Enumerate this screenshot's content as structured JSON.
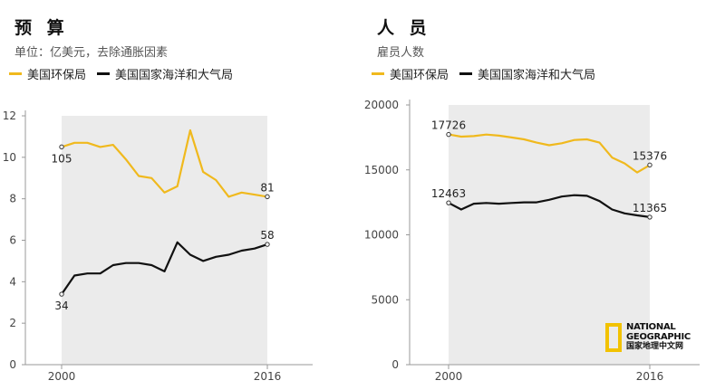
{
  "colors": {
    "epa": "#f0b91d",
    "noaa": "#111111",
    "shade": "#ebebeb",
    "axis": "#999999"
  },
  "logo": {
    "line1": "NATIONAL",
    "line2": "GEOGRAPHIC",
    "line3": "国家地理中文网"
  },
  "chart_data": [
    {
      "type": "line",
      "title": "预 算",
      "subtitle": "单位：亿美元，去除通胀因素",
      "xlabel": "",
      "ylabel": "",
      "x": [
        2000,
        2001,
        2002,
        2003,
        2004,
        2005,
        2006,
        2007,
        2008,
        2009,
        2010,
        2011,
        2012,
        2013,
        2014,
        2015,
        2016
      ],
      "xticks": [
        "2000",
        "2016"
      ],
      "ylim": [
        0,
        12
      ],
      "yticks": [
        "0",
        "2",
        "4",
        "6",
        "8",
        "10",
        "12"
      ],
      "yticks_values": [
        0,
        2,
        4,
        6,
        8,
        10,
        12
      ],
      "series": [
        {
          "name": "美国环保局",
          "color_key": "epa",
          "values": [
            10.5,
            10.7,
            10.7,
            10.5,
            10.6,
            9.9,
            9.1,
            9.0,
            8.3,
            8.6,
            11.3,
            9.3,
            8.9,
            8.1,
            8.3,
            8.2,
            8.1
          ]
        },
        {
          "name": "美国国家海洋和大气局",
          "color_key": "noaa",
          "values": [
            3.4,
            4.3,
            4.4,
            4.4,
            4.8,
            4.9,
            4.9,
            4.8,
            4.5,
            5.9,
            5.3,
            5.0,
            5.2,
            5.3,
            5.5,
            5.6,
            5.8
          ]
        }
      ],
      "annotations": [
        {
          "text": "105",
          "series": 0,
          "index": 0,
          "side": "below"
        },
        {
          "text": "81",
          "series": 0,
          "index": 16,
          "side": "above"
        },
        {
          "text": "34",
          "series": 1,
          "index": 0,
          "side": "below"
        },
        {
          "text": "58",
          "series": 1,
          "index": 16,
          "side": "above"
        }
      ]
    },
    {
      "type": "line",
      "title": "人 员",
      "subtitle": "雇员人数",
      "xlabel": "",
      "ylabel": "",
      "x": [
        2000,
        2001,
        2002,
        2003,
        2004,
        2005,
        2006,
        2007,
        2008,
        2009,
        2010,
        2011,
        2012,
        2013,
        2014,
        2015,
        2016
      ],
      "xticks": [
        "2000",
        "2016"
      ],
      "ylim": [
        0,
        20000
      ],
      "yticks": [
        "0",
        "5000",
        "10000",
        "15000",
        "20000"
      ],
      "yticks_values": [
        0,
        5000,
        10000,
        15000,
        20000
      ],
      "series": [
        {
          "name": "美国环保局",
          "color_key": "epa",
          "values": [
            17726,
            17560,
            17600,
            17720,
            17640,
            17500,
            17350,
            17100,
            16900,
            17050,
            17300,
            17350,
            17100,
            15950,
            15500,
            14800,
            15376
          ]
        },
        {
          "name": "美国国家海洋和大气局",
          "color_key": "noaa",
          "values": [
            12463,
            11950,
            12400,
            12450,
            12400,
            12450,
            12500,
            12500,
            12700,
            12950,
            13050,
            13000,
            12600,
            11950,
            11650,
            11500,
            11365
          ]
        }
      ],
      "annotations": [
        {
          "text": "17726",
          "series": 0,
          "index": 0,
          "side": "above"
        },
        {
          "text": "15376",
          "series": 0,
          "index": 16,
          "side": "above"
        },
        {
          "text": "12463",
          "series": 1,
          "index": 0,
          "side": "above"
        },
        {
          "text": "11365",
          "series": 1,
          "index": 16,
          "side": "above"
        }
      ]
    }
  ]
}
